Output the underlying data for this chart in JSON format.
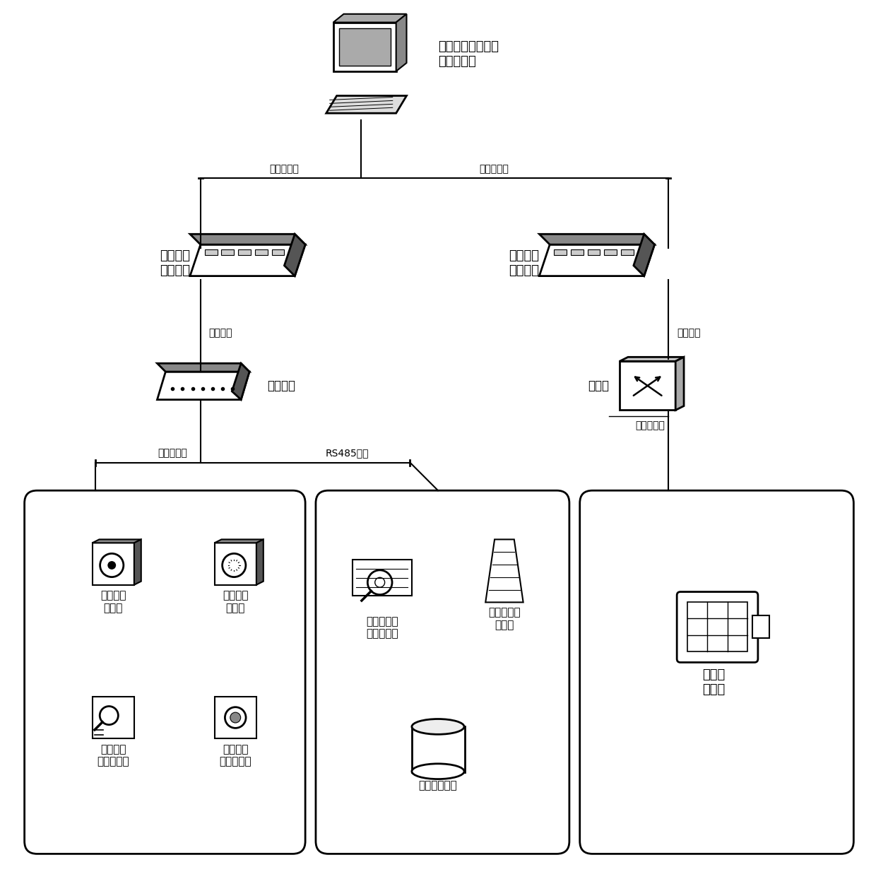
{
  "bg_color": "#ffffff",
  "line_color": "#000000",
  "text_color": "#000000",
  "server_label": "电缆火灾监控预警\n系统服务器",
  "switch1_label": "第一站控\n层交换机",
  "switch2_label": "第二站控\n层交换机",
  "local_module_label": "就地模块",
  "net_switch_label": "交换机",
  "label_wai": "以外网接口",
  "label_tai1": "以太网接口",
  "label_guangxian1": "光纤网络",
  "label_guangxian2": "光纤网络",
  "label_ertongxian": "二总线接口",
  "label_rs485": "RS485接口",
  "label_tai2": "以太网接口",
  "box1_items": [
    "点型感烟\n探测器",
    "点型感温\n探测器",
    "缆式线型\n感温探测器",
    "线型光束\n感烟探测器"
  ],
  "box2_items": [
    "缆式多点型\n温度探测器",
    "吸气式感烟\n探测器",
    "干粉灭火装置"
  ],
  "box3_items": [
    "可见光\n摄像机"
  ]
}
